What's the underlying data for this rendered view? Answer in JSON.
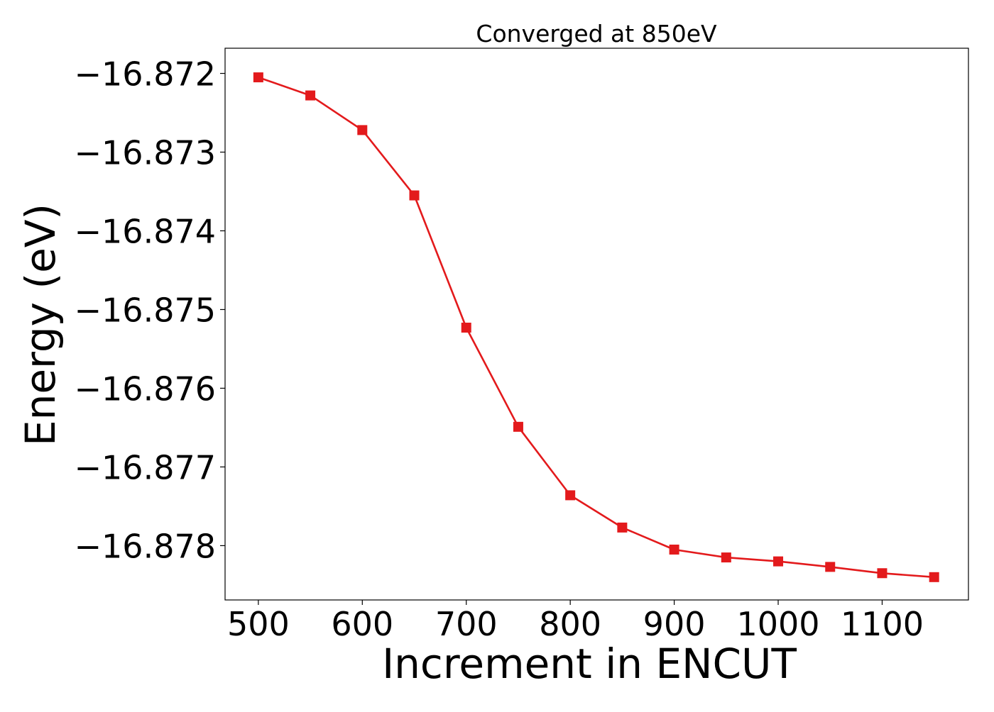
{
  "chart_data": {
    "type": "line",
    "title": "Converged at 850eV",
    "xlabel": "Increment in ENCUT",
    "ylabel": "Energy (eV)",
    "x": [
      500,
      550,
      600,
      650,
      700,
      750,
      800,
      850,
      900,
      950,
      1000,
      1050,
      1100,
      1150
    ],
    "series": [
      {
        "values": [
          -16.87205,
          -16.87228,
          -16.87272,
          -16.87355,
          -16.87523,
          -16.87649,
          -16.87736,
          -16.87777,
          -16.87805,
          -16.87815,
          -16.8782,
          -16.87827,
          -16.87835,
          -16.8784
        ],
        "color": "#e31a1c",
        "marker": "square"
      }
    ],
    "xlim": [
      468,
      1183
    ],
    "ylim": [
      -16.87869,
      -16.87168
    ],
    "xticks": [
      500,
      600,
      700,
      800,
      900,
      1000,
      1100
    ],
    "xtick_labels": [
      "500",
      "600",
      "700",
      "800",
      "900",
      "1000",
      "1100"
    ],
    "yticks": [
      -16.872,
      -16.873,
      -16.874,
      -16.875,
      -16.876,
      -16.877,
      -16.878
    ],
    "ytick_labels": [
      "−16.872",
      "−16.873",
      "−16.874",
      "−16.875",
      "−16.876",
      "−16.877",
      "−16.878"
    ],
    "grid": false,
    "legend": "none"
  }
}
